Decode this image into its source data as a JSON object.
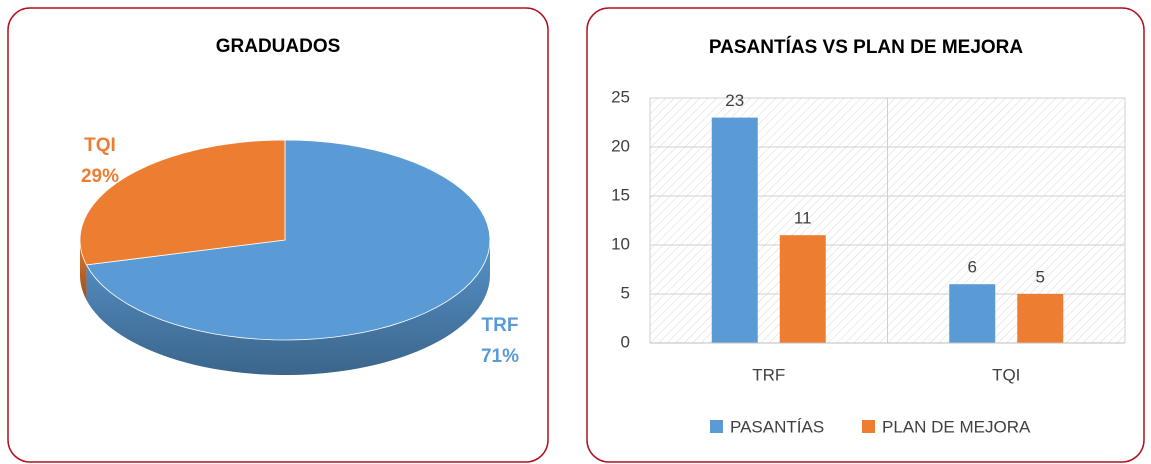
{
  "chart_data": [
    {
      "type": "pie",
      "title": "GRADUADOS",
      "categories": [
        "TRF",
        "TQI"
      ],
      "values": [
        71,
        29
      ],
      "value_labels": [
        "71%",
        "29%"
      ],
      "colors": [
        "#5b9bd5",
        "#ed7d31"
      ]
    },
    {
      "type": "bar",
      "title": "PASANTÍAS VS PLAN DE MEJORA",
      "categories": [
        "TRF",
        "TQI"
      ],
      "series": [
        {
          "name": "PASANTÍAS",
          "color": "#5b9bd5",
          "values": [
            23,
            6
          ]
        },
        {
          "name": "PLAN DE MEJORA",
          "color": "#ed7d31",
          "values": [
            11,
            5
          ]
        }
      ],
      "ylim": [
        0,
        25
      ],
      "yticks": [
        0,
        5,
        10,
        15,
        20,
        25
      ],
      "grid": true,
      "legend": "bottom"
    }
  ]
}
